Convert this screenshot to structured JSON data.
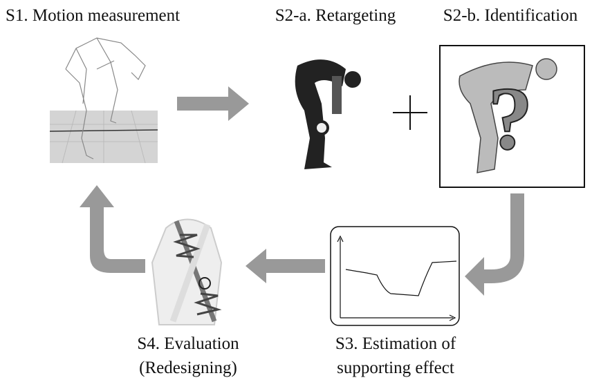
{
  "steps": [
    {
      "label": "S1. Motion measurement"
    },
    {
      "label": "S2-a. Retargeting"
    },
    {
      "label": "S2-b. Identification",
      "symbol": "?"
    },
    {
      "label_lines": [
        "S3. Estimation of",
        "supporting effect"
      ]
    },
    {
      "label_lines": [
        "S4. Evaluation",
        "(Redesigning)"
      ]
    }
  ]
}
